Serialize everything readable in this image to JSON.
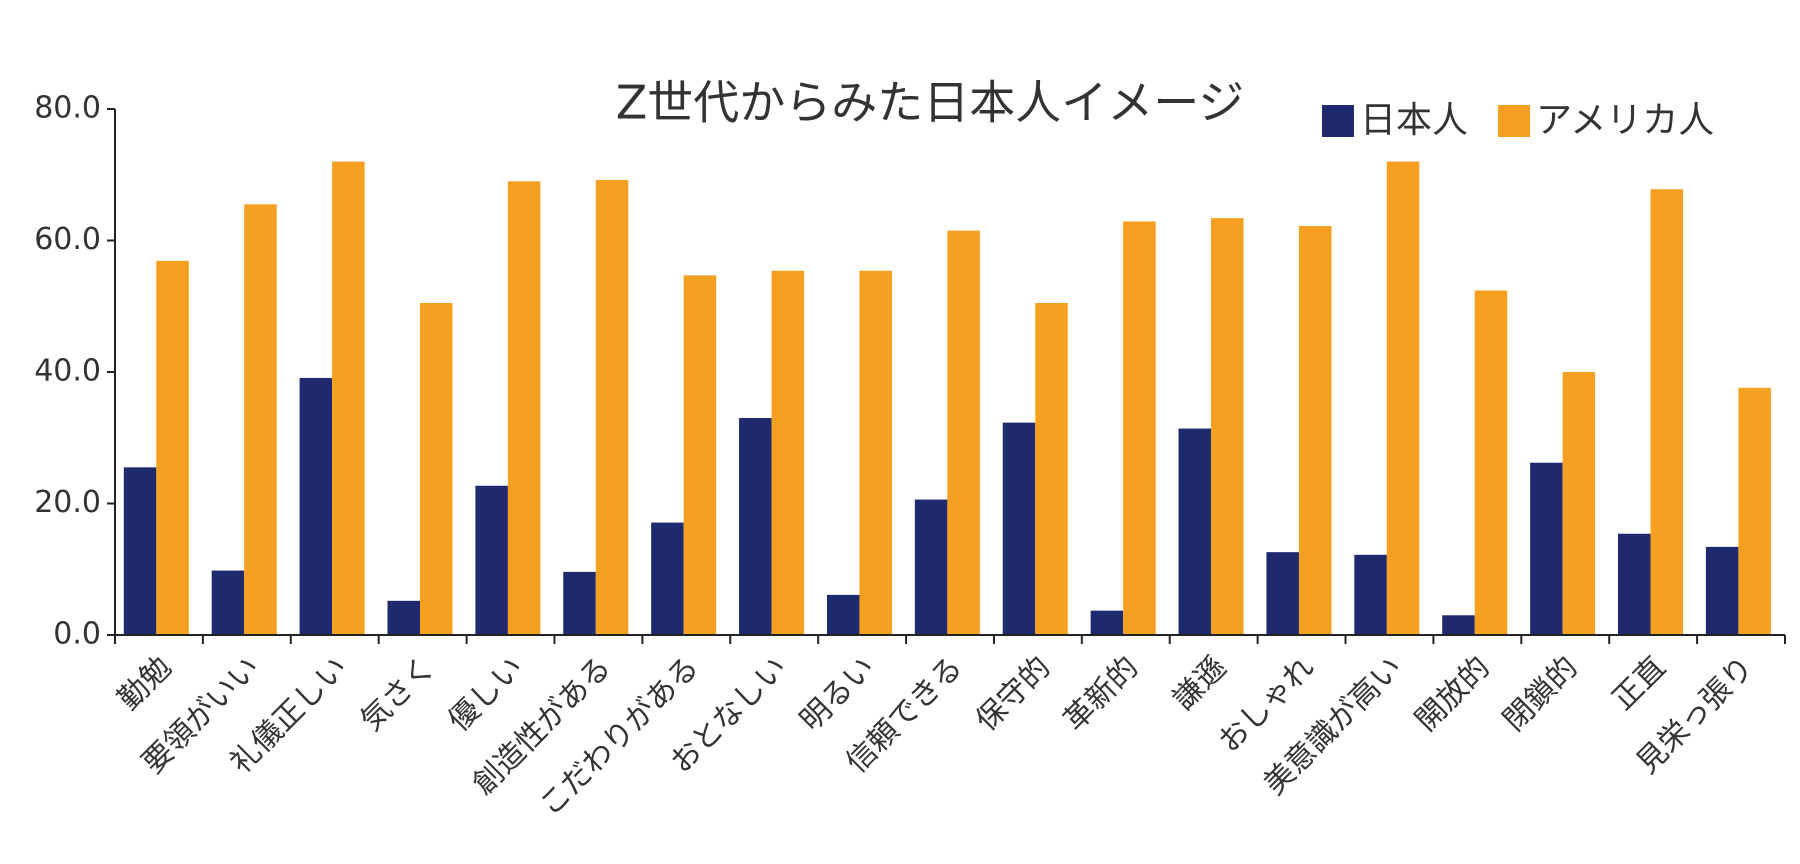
{
  "chart_data": {
    "type": "bar",
    "title": "Z世代からみた日本人イメージ",
    "categories": [
      "勤勉",
      "要領がいい",
      "礼儀正しい",
      "気さく",
      "優しい",
      "創造性がある",
      "こだわりがある",
      "おとなしい",
      "明るい",
      "信頼できる",
      "保守的",
      "革新的",
      "謙遜",
      "おしゃれ",
      "美意識が高い",
      "開放的",
      "閉鎖的",
      "正直",
      "見栄っ張り"
    ],
    "series": [
      {
        "name": "日本人",
        "color": "#1f2a6e",
        "values": [
          25.5,
          9.8,
          39.1,
          5.2,
          22.7,
          9.6,
          17.1,
          33.0,
          6.1,
          20.6,
          32.3,
          3.7,
          31.4,
          12.6,
          12.2,
          3.0,
          26.2,
          15.4,
          13.4
        ]
      },
      {
        "name": "アメリカ人",
        "color": "#f5a020",
        "values": [
          56.9,
          65.5,
          72.0,
          50.5,
          69.0,
          69.2,
          54.7,
          55.4,
          55.4,
          61.5,
          50.5,
          62.9,
          63.4,
          62.2,
          72.0,
          52.4,
          40.0,
          67.8,
          37.6
        ]
      }
    ],
    "ylim": [
      0,
      80
    ],
    "yticks": [
      {
        "value": 0,
        "label": "0.0"
      },
      {
        "value": 20,
        "label": "20.0"
      },
      {
        "value": 40,
        "label": "40.0"
      },
      {
        "value": 60,
        "label": "60.0"
      },
      {
        "value": 80,
        "label": "80.0"
      }
    ],
    "legend": "top-right"
  }
}
